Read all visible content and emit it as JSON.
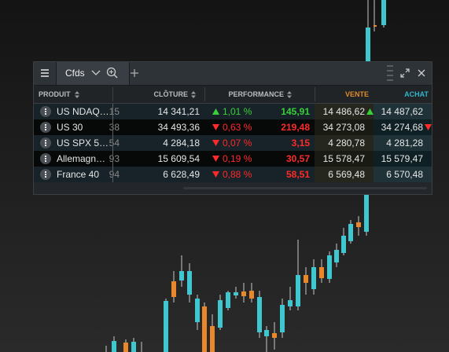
{
  "toolbar": {
    "tab": "Cfds"
  },
  "table": {
    "headers": [
      "PRODUIT",
      "CLÔTURE",
      "PERFORMANCE",
      "VENTE",
      "ACHAT"
    ],
    "rows": [
      {
        "name": "US NDAQ…",
        "hidden": "15",
        "close": "14 341,21",
        "direction": "up",
        "change_pct": "1,01 %",
        "change": "145,91",
        "sell": "14 486,62",
        "sell_tick": "up",
        "buy": "14 487,62"
      },
      {
        "name": "US 30",
        "hidden": "38",
        "close": "34 493,36",
        "direction": "down",
        "change_pct": "0,63 %",
        "change": "219,48",
        "sell": "34 273,08",
        "buy": "34 274,68",
        "buy_tick": "down"
      },
      {
        "name": "US SPX 5…",
        "hidden": "54",
        "close": "4 284,18",
        "direction": "down",
        "change_pct": "0,07 %",
        "change": "3,15",
        "sell": "4 280,78",
        "buy": "4 281,28"
      },
      {
        "name": "Allemagn…",
        "hidden": "93",
        "close": "15 609,54",
        "direction": "down",
        "change_pct": "0,19 %",
        "change": "30,57",
        "sell": "15 578,47",
        "buy": "15 579,47"
      },
      {
        "name": "France 40",
        "hidden": "94",
        "close": "6 628,49",
        "direction": "down",
        "change_pct": "0,88 %",
        "change": "58,51",
        "sell": "6 569,48",
        "buy": "6 570,48"
      }
    ]
  }
}
